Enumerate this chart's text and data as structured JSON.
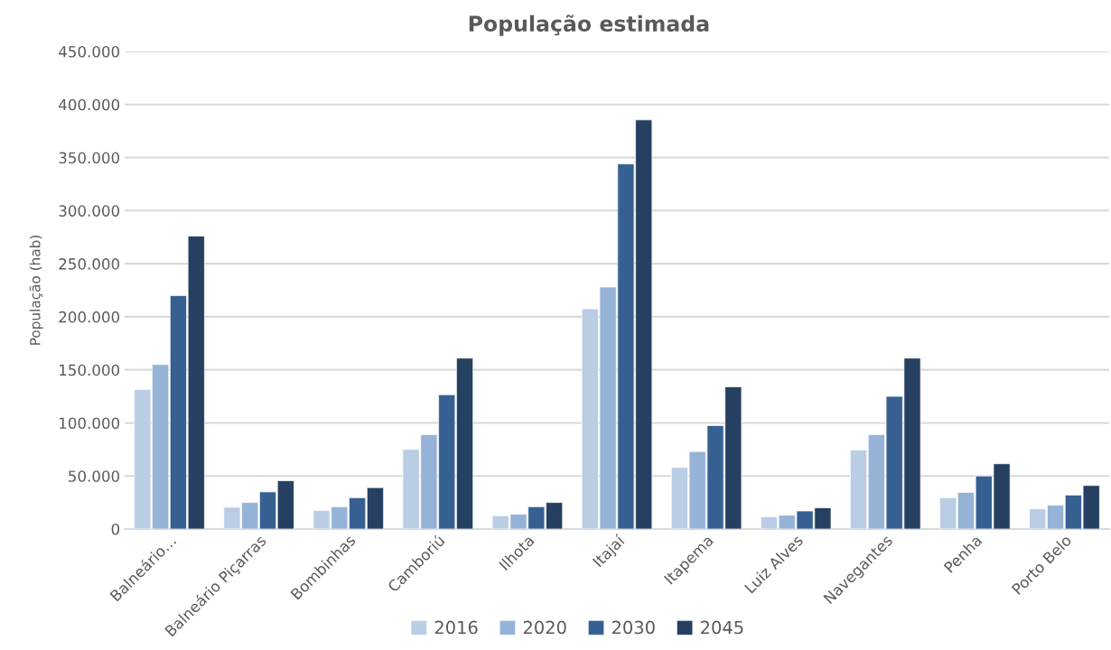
{
  "chart_data": {
    "type": "bar",
    "title": "População estimada",
    "ylabel": "População (hab)",
    "categories": [
      "Balneário…",
      "Balneário Piçarras",
      "Bombinhas",
      "Camboriú",
      "Ilhota",
      "Itajaí",
      "Itapema",
      "Luiz Alves",
      "Navegantes",
      "Penha",
      "Porto Belo"
    ],
    "series": [
      {
        "name": "2016",
        "color": "#b9cde5",
        "values": [
          131500,
          20500,
          17500,
          75000,
          12500,
          207500,
          58000,
          11500,
          74500,
          29500,
          19000
        ]
      },
      {
        "name": "2020",
        "color": "#95b3d7",
        "values": [
          155000,
          25000,
          21000,
          89000,
          14000,
          228000,
          73000,
          13000,
          89000,
          34500,
          22500
        ]
      },
      {
        "name": "2030",
        "color": "#376092",
        "values": [
          220000,
          35000,
          29500,
          126500,
          21000,
          344000,
          97500,
          17000,
          125000,
          50000,
          32000
        ]
      },
      {
        "name": "2045",
        "color": "#254061",
        "values": [
          276000,
          45500,
          39000,
          161000,
          25000,
          385500,
          134000,
          20000,
          161000,
          61500,
          41000
        ]
      }
    ],
    "ylim": [
      0,
      450000
    ],
    "yticks": [
      {
        "value": 0,
        "label": "0"
      },
      {
        "value": 50000,
        "label": "50.000"
      },
      {
        "value": 100000,
        "label": "100.000"
      },
      {
        "value": 150000,
        "label": "150.000"
      },
      {
        "value": 200000,
        "label": "200.000"
      },
      {
        "value": 250000,
        "label": "250.000"
      },
      {
        "value": 300000,
        "label": "300.000"
      },
      {
        "value": 350000,
        "label": "350.000"
      },
      {
        "value": 400000,
        "label": "400.000"
      },
      {
        "value": 450000,
        "label": "450.000"
      }
    ],
    "grid": "y",
    "legend": "bottom"
  }
}
